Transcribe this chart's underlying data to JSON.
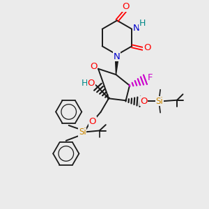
{
  "bg_color": "#ebebeb",
  "bond_color": "#1a1a1a",
  "o_color": "#ff0000",
  "n_color": "#0000cc",
  "f_color": "#cc00cc",
  "si_color": "#cc8800",
  "h_color": "#008888",
  "figsize": [
    3.0,
    3.0
  ],
  "dpi": 100,
  "xlim": [
    0,
    10
  ],
  "ylim": [
    0,
    10
  ]
}
